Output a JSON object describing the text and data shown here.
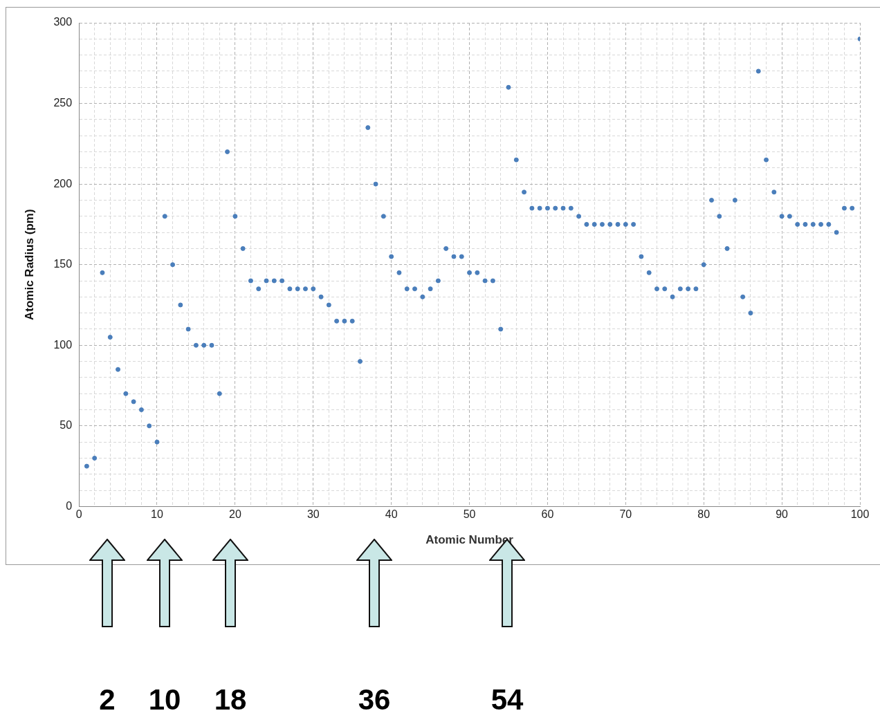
{
  "chart_data": {
    "type": "scatter",
    "xlabel": "Atomic Number",
    "ylabel": "Atomic Radius (pm)",
    "x": [
      1,
      2,
      3,
      4,
      5,
      6,
      7,
      8,
      9,
      10,
      11,
      12,
      13,
      14,
      15,
      16,
      17,
      18,
      19,
      20,
      21,
      22,
      23,
      24,
      25,
      26,
      27,
      28,
      29,
      30,
      31,
      32,
      33,
      34,
      35,
      36,
      37,
      38,
      39,
      40,
      41,
      42,
      43,
      44,
      45,
      46,
      47,
      48,
      49,
      50,
      51,
      52,
      53,
      54,
      55,
      56,
      57,
      58,
      59,
      60,
      61,
      62,
      63,
      64,
      65,
      66,
      67,
      68,
      69,
      70,
      71,
      72,
      73,
      74,
      75,
      76,
      77,
      78,
      79,
      80,
      81,
      82,
      83,
      84,
      85,
      86,
      87,
      88,
      89,
      90,
      91,
      92,
      93,
      94,
      95,
      96,
      97,
      98,
      99,
      100
    ],
    "values": [
      25,
      30,
      145,
      105,
      85,
      70,
      65,
      60,
      50,
      40,
      180,
      150,
      125,
      110,
      100,
      100,
      100,
      70,
      220,
      180,
      160,
      140,
      135,
      140,
      140,
      140,
      135,
      135,
      135,
      135,
      130,
      125,
      115,
      115,
      115,
      90,
      235,
      200,
      180,
      155,
      145,
      135,
      135,
      130,
      135,
      140,
      160,
      155,
      155,
      145,
      145,
      140,
      140,
      110,
      260,
      215,
      195,
      185,
      185,
      185,
      185,
      185,
      185,
      180,
      175,
      175,
      175,
      175,
      175,
      175,
      175,
      155,
      145,
      135,
      135,
      130,
      135,
      135,
      135,
      150,
      190,
      180,
      160,
      190,
      130,
      120,
      270,
      215,
      195,
      180,
      180,
      175,
      175,
      175,
      175,
      175,
      170,
      185,
      185,
      290
    ],
    "color": "#4a7ebb",
    "marker": "circle",
    "grid": true,
    "legend": false,
    "xlim": [
      0,
      100
    ],
    "xticks": [
      0,
      {
        "value": 2,
        "label": null
      },
      {
        "value": 4,
        "label": null
      },
      {
        "value": 6,
        "label": null
      },
      {
        "value": 8,
        "label": null
      },
      10,
      {
        "value": 12,
        "label": null
      },
      {
        "value": 14,
        "label": null
      },
      {
        "value": 16,
        "label": null
      },
      {
        "value": 18,
        "label": null
      },
      20,
      {
        "value": 22,
        "label": null
      },
      {
        "value": 24,
        "label": null
      },
      {
        "value": 26,
        "label": null
      },
      {
        "value": 28,
        "label": null
      },
      30,
      {
        "value": 32,
        "label": null
      },
      {
        "value": 34,
        "label": null
      },
      {
        "value": 36,
        "label": null
      },
      {
        "value": 38,
        "label": null
      },
      40,
      {
        "value": 42,
        "label": null
      },
      {
        "value": 44,
        "label": null
      },
      {
        "value": 46,
        "label": null
      },
      {
        "value": 48,
        "label": null
      },
      50,
      {
        "value": 52,
        "label": null
      },
      {
        "value": 54,
        "label": null
      },
      {
        "value": 56,
        "label": null
      },
      {
        "value": 58,
        "label": null
      },
      60,
      {
        "value": 62,
        "label": null
      },
      {
        "value": 64,
        "label": null
      },
      {
        "value": 66,
        "label": null
      },
      {
        "value": 68,
        "label": null
      },
      70,
      {
        "value": 72,
        "label": null
      },
      {
        "value": 74,
        "label": null
      },
      {
        "value": 76,
        "label": null
      },
      {
        "value": 78,
        "label": null
      },
      80,
      {
        "value": 82,
        "label": null
      },
      {
        "value": 84,
        "label": null
      },
      {
        "value": 86,
        "label": null
      },
      {
        "value": 88,
        "label": null
      },
      90,
      {
        "value": 92,
        "label": null
      },
      {
        "value": 94,
        "label": null
      },
      {
        "value": 96,
        "label": null
      },
      {
        "value": 98,
        "label": null
      },
      100
    ],
    "ylim": [
      0,
      300
    ],
    "yticks": [
      0,
      {
        "value": 10,
        "label": null
      },
      {
        "value": 20,
        "label": null
      },
      {
        "value": 30,
        "label": null
      },
      {
        "value": 40,
        "label": null
      },
      50,
      {
        "value": 60,
        "label": null
      },
      {
        "value": 70,
        "label": null
      },
      {
        "value": 80,
        "label": null
      },
      {
        "value": 90,
        "label": null
      },
      100,
      {
        "value": 110,
        "label": null
      },
      {
        "value": 120,
        "label": null
      },
      {
        "value": 130,
        "label": null
      },
      {
        "value": 140,
        "label": null
      },
      150,
      {
        "value": 160,
        "label": null
      },
      {
        "value": 170,
        "label": null
      },
      {
        "value": 180,
        "label": null
      },
      {
        "value": 190,
        "label": null
      },
      200,
      {
        "value": 210,
        "label": null
      },
      {
        "value": 220,
        "label": null
      },
      {
        "value": 230,
        "label": null
      },
      {
        "value": 240,
        "label": null
      },
      250,
      {
        "value": 260,
        "label": null
      },
      {
        "value": 270,
        "label": null
      },
      {
        "value": 280,
        "label": null
      },
      {
        "value": 290,
        "label": null
      },
      300
    ],
    "annotations": [
      "2",
      "10",
      "18",
      "36",
      "54"
    ]
  }
}
